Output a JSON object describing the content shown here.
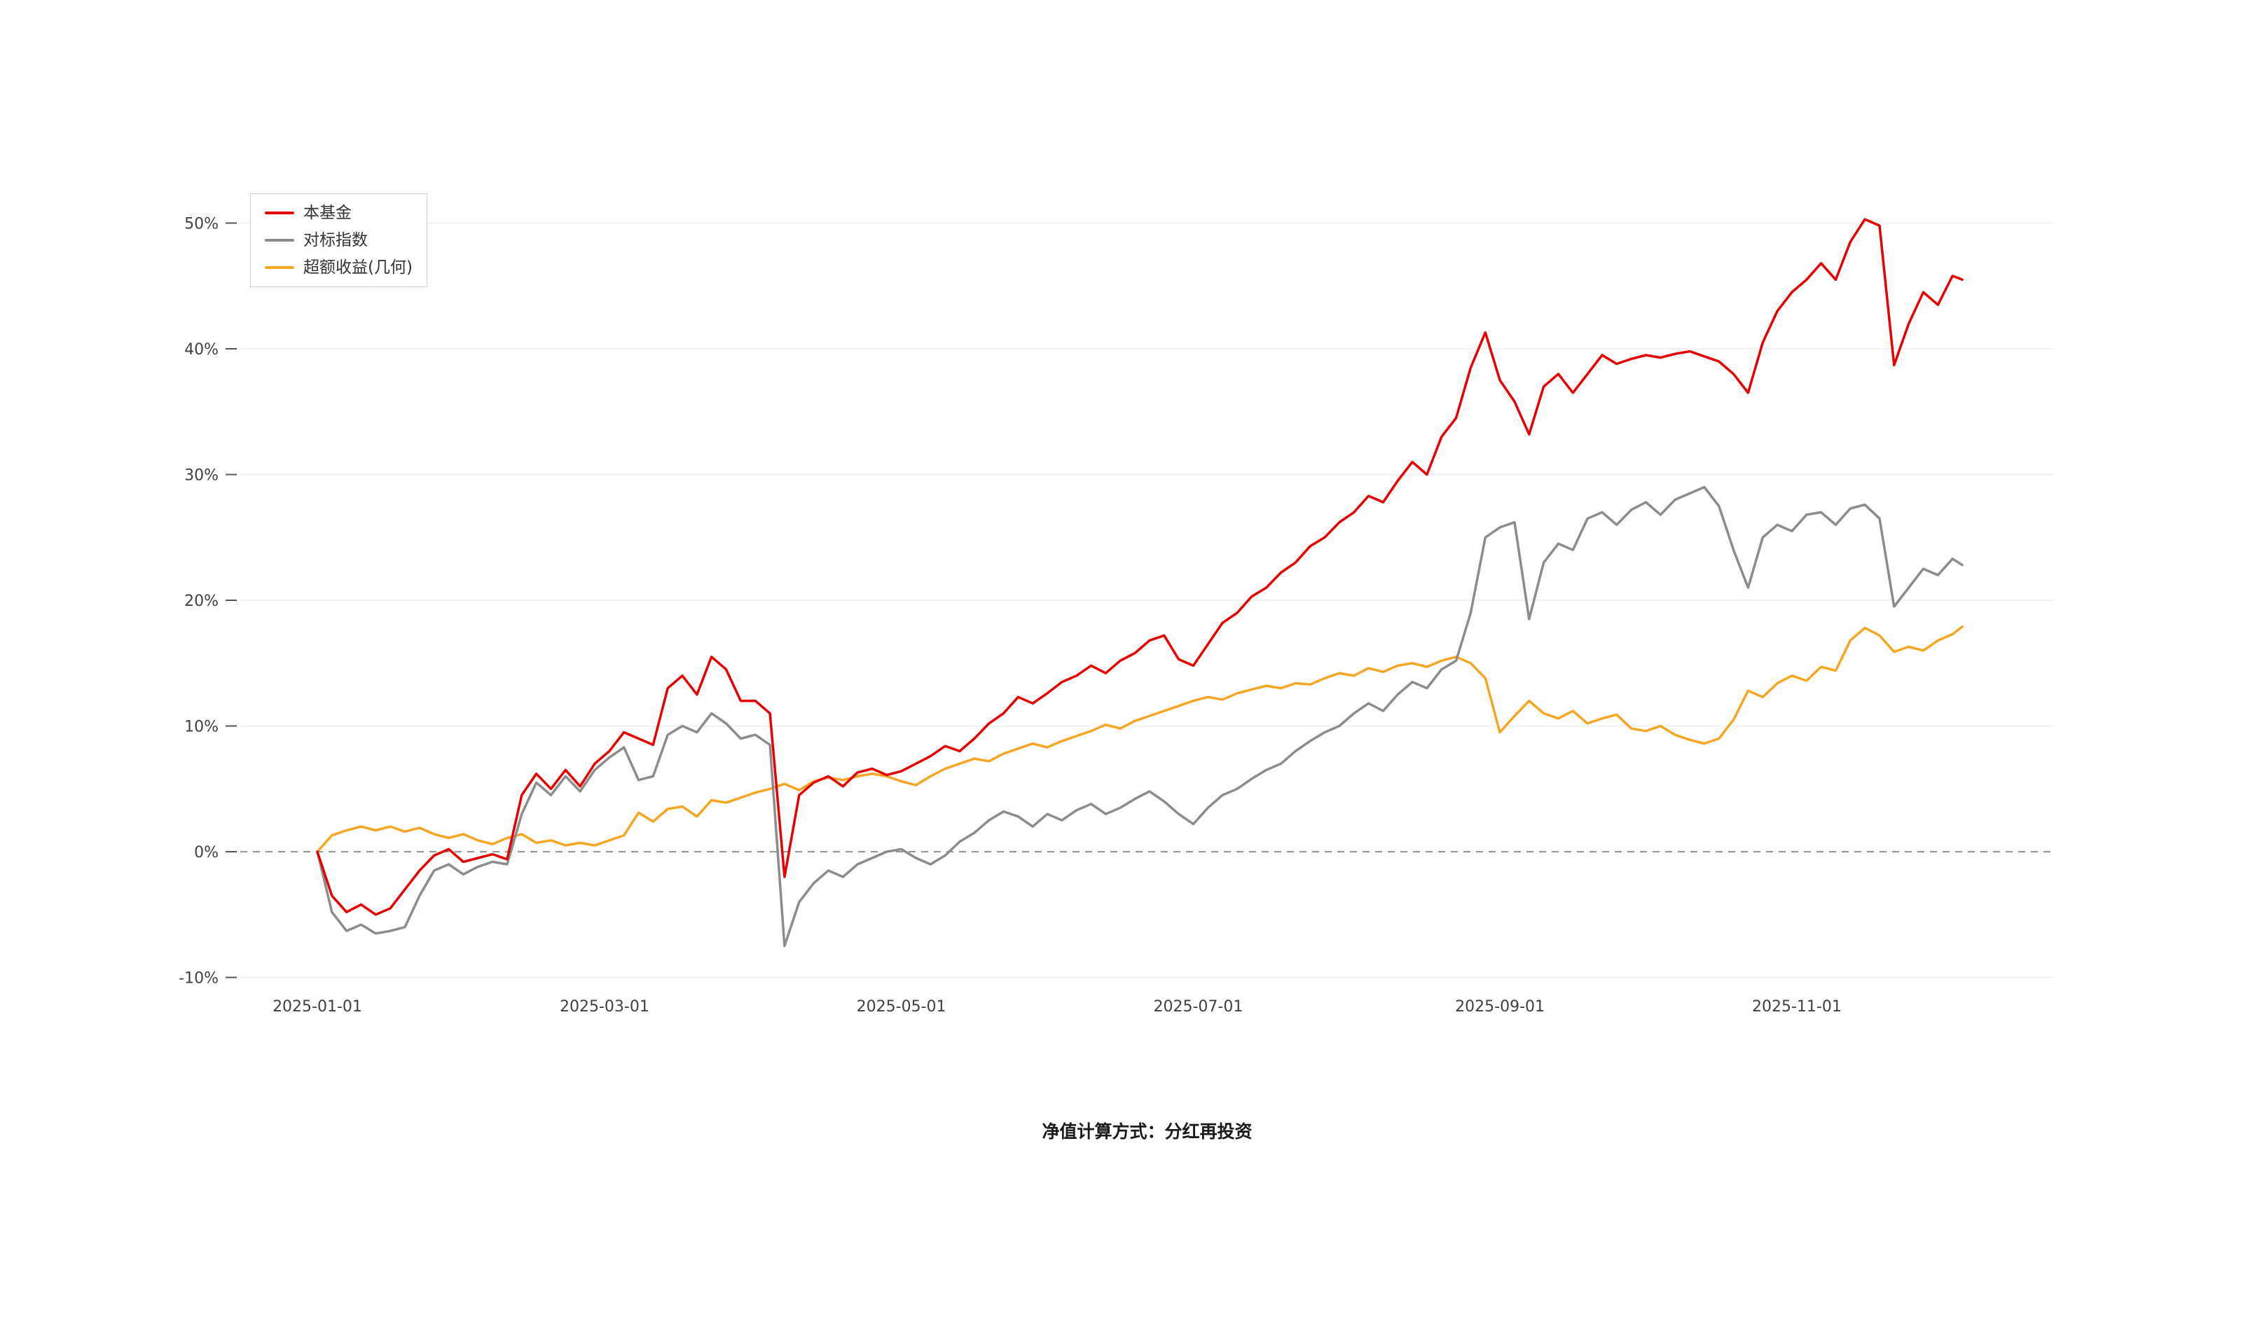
{
  "page": {
    "background": "#ffffff",
    "footer_note": "净值计算方式：分红再投资"
  },
  "chart_data": {
    "type": "line",
    "title": "",
    "xlabel": "",
    "ylabel": "",
    "grid": "horizontal-light",
    "zero_line": "dashed",
    "legend_position": "top-left",
    "ylim": [
      -10,
      50
    ],
    "y_ticks": [
      {
        "value": 50,
        "label": "50%"
      },
      {
        "value": 40,
        "label": "40%"
      },
      {
        "value": 30,
        "label": "30%"
      },
      {
        "value": 20,
        "label": "20%"
      },
      {
        "value": 10,
        "label": "10%"
      },
      {
        "value": 0,
        "label": "0%"
      },
      {
        "value": -10,
        "label": "-10%"
      }
    ],
    "x_tick_labels": [
      "2025-01-01",
      "2025-03-01",
      "2025-05-01",
      "2025-07-01",
      "2025-09-01",
      "2025-11-01"
    ],
    "x": [
      "2025-01-01",
      "2025-01-04",
      "2025-01-07",
      "2025-01-10",
      "2025-01-13",
      "2025-01-16",
      "2025-01-19",
      "2025-01-22",
      "2025-01-25",
      "2025-01-28",
      "2025-01-31",
      "2025-02-03",
      "2025-02-06",
      "2025-02-09",
      "2025-02-12",
      "2025-02-15",
      "2025-02-18",
      "2025-02-21",
      "2025-02-24",
      "2025-02-27",
      "2025-03-02",
      "2025-03-05",
      "2025-03-08",
      "2025-03-11",
      "2025-03-14",
      "2025-03-17",
      "2025-03-20",
      "2025-03-23",
      "2025-03-26",
      "2025-03-29",
      "2025-04-01",
      "2025-04-04",
      "2025-04-07",
      "2025-04-10",
      "2025-04-13",
      "2025-04-16",
      "2025-04-19",
      "2025-04-22",
      "2025-04-25",
      "2025-04-28",
      "2025-05-01",
      "2025-05-04",
      "2025-05-07",
      "2025-05-10",
      "2025-05-13",
      "2025-05-16",
      "2025-05-19",
      "2025-05-22",
      "2025-05-25",
      "2025-05-28",
      "2025-05-31",
      "2025-06-03",
      "2025-06-06",
      "2025-06-09",
      "2025-06-12",
      "2025-06-15",
      "2025-06-18",
      "2025-06-21",
      "2025-06-24",
      "2025-06-27",
      "2025-06-30",
      "2025-07-03",
      "2025-07-06",
      "2025-07-09",
      "2025-07-12",
      "2025-07-15",
      "2025-07-18",
      "2025-07-21",
      "2025-07-24",
      "2025-07-27",
      "2025-07-30",
      "2025-08-02",
      "2025-08-05",
      "2025-08-08",
      "2025-08-11",
      "2025-08-14",
      "2025-08-17",
      "2025-08-20",
      "2025-08-23",
      "2025-08-26",
      "2025-08-29",
      "2025-09-01",
      "2025-09-04",
      "2025-09-07",
      "2025-09-10",
      "2025-09-13",
      "2025-09-16",
      "2025-09-19",
      "2025-09-22",
      "2025-09-25",
      "2025-09-28",
      "2025-10-01",
      "2025-10-04",
      "2025-10-07",
      "2025-10-10",
      "2025-10-13",
      "2025-10-16",
      "2025-10-19",
      "2025-10-22",
      "2025-10-25",
      "2025-10-28",
      "2025-10-31",
      "2025-11-03",
      "2025-11-06",
      "2025-11-09",
      "2025-11-12",
      "2025-11-15",
      "2025-11-18",
      "2025-11-21",
      "2025-11-24",
      "2025-11-27",
      "2025-11-30",
      "2025-12-03",
      "2025-12-05"
    ],
    "series": [
      {
        "key": "fund",
        "name": "本基金",
        "color": "#e60000",
        "values": [
          0.0,
          -3.5,
          -4.8,
          -4.2,
          -5.0,
          -4.5,
          -3.0,
          -1.5,
          -0.3,
          0.2,
          -0.8,
          -0.5,
          -0.2,
          -0.6,
          4.5,
          6.2,
          5.0,
          6.5,
          5.2,
          7.0,
          8.0,
          9.5,
          9.0,
          8.5,
          13.0,
          14.0,
          12.5,
          15.5,
          14.5,
          12.0,
          12.0,
          11.0,
          -2.0,
          4.5,
          5.5,
          6.0,
          5.2,
          6.3,
          6.6,
          6.1,
          6.4,
          7.0,
          7.6,
          8.4,
          8.0,
          9.0,
          10.2,
          11.0,
          12.3,
          11.8,
          12.6,
          13.5,
          14.0,
          14.8,
          14.2,
          15.2,
          15.8,
          16.8,
          17.2,
          15.3,
          14.8,
          16.5,
          18.2,
          19.0,
          20.3,
          21.0,
          22.2,
          23.0,
          24.3,
          25.0,
          26.2,
          27.0,
          28.3,
          27.8,
          29.5,
          31.0,
          30.0,
          33.0,
          34.5,
          38.5,
          41.3,
          37.5,
          35.8,
          33.2,
          37.0,
          38.0,
          36.5,
          38.0,
          39.5,
          38.8,
          39.2,
          39.5,
          39.3,
          39.6,
          39.8,
          39.4,
          39.0,
          38.0,
          36.5,
          40.5,
          43.0,
          44.5,
          45.5,
          46.8,
          45.5,
          48.5,
          50.3,
          49.8,
          38.7,
          42.0,
          44.5,
          43.5,
          45.8,
          45.5
        ]
      },
      {
        "key": "benchmark",
        "name": "对标指数",
        "color": "#8c8c8c",
        "values": [
          0.0,
          -4.8,
          -6.3,
          -5.8,
          -6.5,
          -6.3,
          -6.0,
          -3.5,
          -1.5,
          -1.0,
          -1.8,
          -1.2,
          -0.8,
          -1.0,
          3.0,
          5.5,
          4.5,
          6.0,
          4.8,
          6.5,
          7.5,
          8.3,
          5.7,
          6.0,
          9.3,
          10.0,
          9.5,
          11.0,
          10.2,
          9.0,
          9.3,
          8.5,
          -7.5,
          -4.0,
          -2.5,
          -1.5,
          -2.0,
          -1.0,
          -0.5,
          0.0,
          0.2,
          -0.5,
          -1.0,
          -0.3,
          0.8,
          1.5,
          2.5,
          3.2,
          2.8,
          2.0,
          3.0,
          2.5,
          3.3,
          3.8,
          3.0,
          3.5,
          4.2,
          4.8,
          4.0,
          3.0,
          2.2,
          3.5,
          4.5,
          5.0,
          5.8,
          6.5,
          7.0,
          8.0,
          8.8,
          9.5,
          10.0,
          11.0,
          11.8,
          11.2,
          12.5,
          13.5,
          13.0,
          14.5,
          15.2,
          19.0,
          25.0,
          25.8,
          26.2,
          18.5,
          23.0,
          24.5,
          24.0,
          26.5,
          27.0,
          26.0,
          27.2,
          27.8,
          26.8,
          28.0,
          28.5,
          29.0,
          27.5,
          24.0,
          21.0,
          25.0,
          26.0,
          25.5,
          26.8,
          27.0,
          26.0,
          27.3,
          27.6,
          26.5,
          19.5,
          21.0,
          22.5,
          22.0,
          23.3,
          22.8
        ]
      },
      {
        "key": "excess-geometric",
        "name": "超额收益(几何)",
        "color": "#f5a623",
        "values": [
          0.0,
          1.3,
          1.7,
          2.0,
          1.7,
          2.0,
          1.6,
          1.9,
          1.4,
          1.1,
          1.4,
          0.9,
          0.6,
          1.1,
          1.4,
          0.7,
          0.9,
          0.5,
          0.7,
          0.5,
          0.9,
          1.3,
          3.1,
          2.4,
          3.4,
          3.6,
          2.8,
          4.1,
          3.9,
          4.3,
          4.7,
          5.0,
          5.4,
          4.9,
          5.6,
          5.9,
          5.7,
          6.0,
          6.2,
          6.0,
          5.6,
          5.3,
          6.0,
          6.6,
          7.0,
          7.4,
          7.2,
          7.8,
          8.2,
          8.6,
          8.3,
          8.8,
          9.2,
          9.6,
          10.1,
          9.8,
          10.4,
          10.8,
          11.2,
          11.6,
          12.0,
          12.3,
          12.1,
          12.6,
          12.9,
          13.2,
          13.0,
          13.4,
          13.3,
          13.8,
          14.2,
          14.0,
          14.6,
          14.3,
          14.8,
          15.0,
          14.7,
          15.2,
          15.5,
          15.0,
          13.8,
          9.5,
          10.8,
          12.0,
          11.0,
          10.6,
          11.2,
          10.2,
          10.6,
          10.9,
          9.8,
          9.6,
          10.0,
          9.3,
          8.9,
          8.6,
          9.0,
          10.5,
          12.8,
          12.3,
          13.4,
          14.0,
          13.6,
          14.7,
          14.4,
          16.8,
          17.8,
          17.2,
          15.9,
          16.3,
          16.0,
          16.8,
          17.3,
          17.9
        ]
      }
    ]
  }
}
